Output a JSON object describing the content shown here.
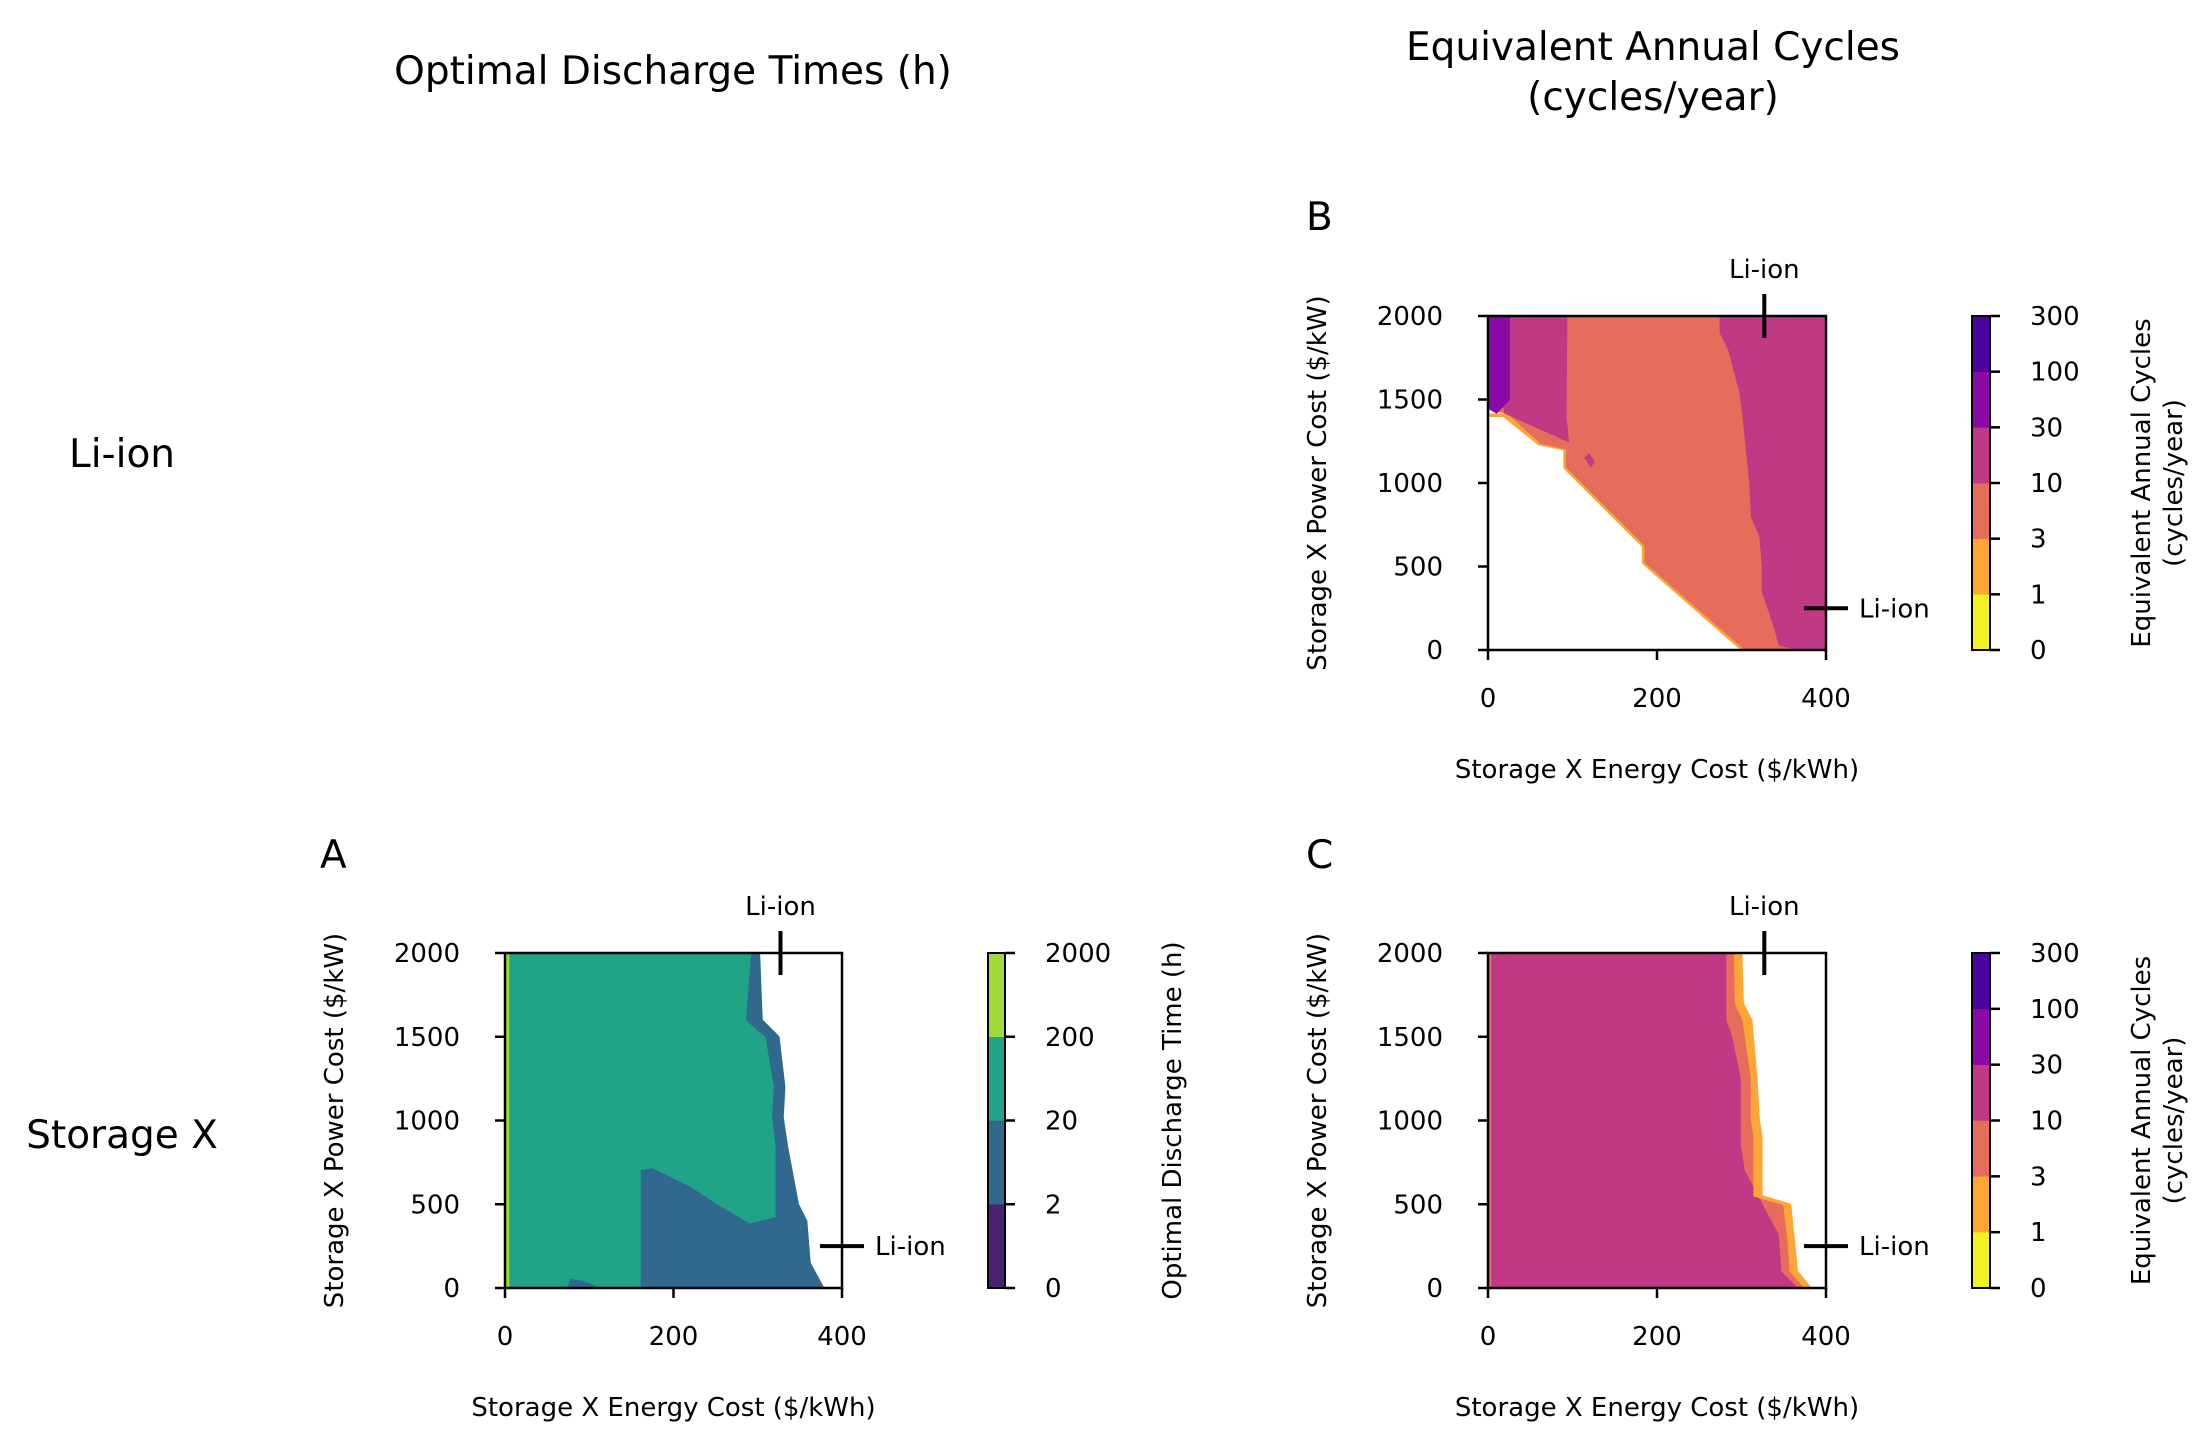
{
  "column_titles": {
    "left": "Optimal Discharge Times (h)",
    "right_line1": "Equivalent Annual Cycles",
    "right_line2": "(cycles/year)"
  },
  "row_titles": {
    "top": "Li-ion",
    "bottom": "Storage X"
  },
  "chart_data": [
    {
      "type": "heatmap",
      "panel": "A",
      "xlabel": "Storage X Energy Cost ($/kWh)",
      "ylabel": "Storage X Power Cost ($/kW)",
      "xlim": [
        0,
        400
      ],
      "ylim": [
        0,
        2000
      ],
      "xticks": [
        "0",
        "200",
        "400"
      ],
      "yticks": [
        "0",
        "500",
        "1000",
        "1500",
        "2000"
      ],
      "reference": {
        "label": "Li-ion",
        "energy_cost": 327,
        "power_cost": 250
      },
      "colorbar": {
        "label": "Optimal Discharge Time (h)",
        "levels": [
          "0",
          "2",
          "20",
          "200",
          "2000"
        ],
        "colors": [
          "#482173",
          "#31688e",
          "#20a386",
          "#a0da39"
        ]
      },
      "regions": [
        {
          "level": "200-2000 h",
          "color": "#a0da39",
          "points": [
            [
              0,
              0
            ],
            [
              6,
              0
            ],
            [
              6,
              2000
            ],
            [
              0,
              2000
            ]
          ]
        },
        {
          "level": "20-200 h",
          "color": "#20a386",
          "points": [
            [
              6,
              0
            ],
            [
              6,
              2000
            ],
            [
              293,
              2000
            ],
            [
              287,
              1600
            ],
            [
              310,
              1500
            ],
            [
              320,
              1200
            ],
            [
              318,
              1020
            ],
            [
              322,
              850
            ],
            [
              322,
              420
            ],
            [
              290,
              380
            ],
            [
              250,
              500
            ],
            [
              220,
              600
            ],
            [
              175,
              710
            ],
            [
              162,
              700
            ],
            [
              162,
              0
            ]
          ]
        },
        {
          "level": "2-20 h",
          "color": "#31688e",
          "points": [
            [
              162,
              0
            ],
            [
              162,
              700
            ],
            [
              175,
              710
            ],
            [
              220,
              600
            ],
            [
              250,
              500
            ],
            [
              290,
              380
            ],
            [
              322,
              420
            ],
            [
              322,
              850
            ],
            [
              318,
              1020
            ],
            [
              320,
              1200
            ],
            [
              310,
              1500
            ],
            [
              287,
              1600
            ],
            [
              293,
              2000
            ],
            [
              302,
              2000
            ],
            [
              305,
              1600
            ],
            [
              325,
              1500
            ],
            [
              332,
              1200
            ],
            [
              330,
              1020
            ],
            [
              335,
              850
            ],
            [
              348,
              500
            ],
            [
              358,
              400
            ],
            [
              362,
              150
            ],
            [
              378,
              0
            ]
          ]
        },
        {
          "level": "2-20 h",
          "color": "#31688e",
          "points": [
            [
              75,
              0
            ],
            [
              78,
              50
            ],
            [
              95,
              35
            ],
            [
              110,
              0
            ]
          ]
        }
      ]
    },
    {
      "type": "heatmap",
      "panel": "B",
      "xlabel": "Storage X Energy Cost ($/kWh)",
      "ylabel": "Storage X Power Cost ($/kW)",
      "xlim": [
        0,
        400
      ],
      "ylim": [
        0,
        2000
      ],
      "xticks": [
        "0",
        "200",
        "400"
      ],
      "yticks": [
        "0",
        "500",
        "1000",
        "1500",
        "2000"
      ],
      "reference": {
        "label": "Li-ion",
        "energy_cost": 327,
        "power_cost": 250
      },
      "colorbar": {
        "label_line1": "Equivalent Annual Cycles",
        "label_line2": "(cycles/year)",
        "levels": [
          "0",
          "1",
          "3",
          "10",
          "30",
          "100",
          "300"
        ],
        "colors": [
          "#f2f122",
          "#fca636",
          "#e66c5c",
          "#bf3984",
          "#8b0aa5",
          "#4c02a1"
        ]
      },
      "regions": [
        {
          "level": "1-3",
          "color": "#fca636",
          "points": [
            [
              0,
              1400
            ],
            [
              18,
              1400
            ],
            [
              60,
              1230
            ],
            [
              90,
              1200
            ],
            [
              90,
              1090
            ],
            [
              183,
              620
            ],
            [
              183,
              520
            ],
            [
              300,
              0
            ],
            [
              305,
              0
            ],
            [
              186,
              520
            ],
            [
              186,
              620
            ],
            [
              93,
              1090
            ],
            [
              93,
              1200
            ],
            [
              63,
              1235
            ],
            [
              22,
              1412
            ],
            [
              0,
              1412
            ]
          ]
        },
        {
          "level": "3-10",
          "color": "#e66c5c",
          "points": [
            [
              10,
              1430
            ],
            [
              23,
              1420
            ],
            [
              63,
              1238
            ],
            [
              93,
              1205
            ],
            [
              93,
              1095
            ],
            [
              186,
              625
            ],
            [
              186,
              525
            ],
            [
              305,
              0
            ],
            [
              375,
              0
            ],
            [
              342,
              250
            ],
            [
              330,
              490
            ],
            [
              330,
              680
            ],
            [
              318,
              890
            ],
            [
              313,
              1050
            ],
            [
              307,
              1400
            ],
            [
              300,
              1620
            ],
            [
              290,
              1840
            ],
            [
              290,
              2000
            ],
            [
              15,
              2000
            ]
          ]
        },
        {
          "level": "10-30",
          "color": "#bf3984",
          "points": [
            [
              5,
              2000
            ],
            [
              93,
              2000
            ],
            [
              93,
              1900
            ],
            [
              92,
              1400
            ],
            [
              95,
              1250
            ],
            [
              20,
              1420
            ]
          ]
        },
        {
          "level": "10-30",
          "color": "#bf3984",
          "points": [
            [
              115,
              1150
            ],
            [
              122,
              1100
            ],
            [
              125,
              1130
            ],
            [
              120,
              1170
            ]
          ]
        },
        {
          "level": "10-30",
          "color": "#bf3984",
          "points": [
            [
              275,
              2000
            ],
            [
              400,
              2000
            ],
            [
              400,
              0
            ],
            [
              370,
              0
            ],
            [
              345,
              30
            ],
            [
              340,
              120
            ],
            [
              325,
              350
            ],
            [
              325,
              500
            ],
            [
              322,
              680
            ],
            [
              312,
              800
            ],
            [
              310,
              1000
            ],
            [
              306,
              1200
            ],
            [
              302,
              1400
            ],
            [
              298,
              1550
            ],
            [
              285,
              1800
            ],
            [
              275,
              1900
            ]
          ]
        },
        {
          "level": "30-100",
          "color": "#8b0aa5",
          "points": [
            [
              0,
              2000
            ],
            [
              25,
              2000
            ],
            [
              25,
              1500
            ],
            [
              10,
              1420
            ],
            [
              0,
              1450
            ]
          ]
        }
      ]
    },
    {
      "type": "heatmap",
      "panel": "C",
      "xlabel": "Storage X Energy Cost ($/kWh)",
      "ylabel": "Storage X Power Cost ($/kW)",
      "xlim": [
        0,
        400
      ],
      "ylim": [
        0,
        2000
      ],
      "xticks": [
        "0",
        "200",
        "400"
      ],
      "yticks": [
        "0",
        "500",
        "1000",
        "1500",
        "2000"
      ],
      "reference": {
        "label": "Li-ion",
        "energy_cost": 327,
        "power_cost": 250
      },
      "colorbar": {
        "label_line1": "Equivalent Annual Cycles",
        "label_line2": "(cycles/year)",
        "levels": [
          "0",
          "1",
          "3",
          "10",
          "30",
          "100",
          "300"
        ],
        "colors": [
          "#f2f122",
          "#fca636",
          "#e66c5c",
          "#bf3984",
          "#8b0aa5",
          "#4c02a1"
        ]
      },
      "regions": [
        {
          "level": "3-10",
          "color": "#e66c5c",
          "points": [
            [
              0,
              0
            ],
            [
              5,
              0
            ],
            [
              5,
              2000
            ],
            [
              0,
              2000
            ]
          ]
        },
        {
          "level": "10-30",
          "color": "#bf3984",
          "points": [
            [
              5,
              0
            ],
            [
              5,
              2000
            ],
            [
              283,
              2000
            ],
            [
              283,
              1600
            ],
            [
              290,
              1500
            ],
            [
              300,
              1250
            ],
            [
              300,
              1000
            ],
            [
              300,
              850
            ],
            [
              305,
              700
            ],
            [
              326,
              500
            ],
            [
              345,
              320
            ],
            [
              348,
              100
            ],
            [
              368,
              0
            ]
          ]
        },
        {
          "level": "3-10",
          "color": "#e66c5c",
          "points": [
            [
              283,
              2000
            ],
            [
              292,
              2000
            ],
            [
              293,
              1700
            ],
            [
              302,
              1600
            ],
            [
              312,
              1250
            ],
            [
              312,
              1000
            ],
            [
              315,
              900
            ],
            [
              315,
              550
            ],
            [
              350,
              500
            ],
            [
              355,
              300
            ],
            [
              358,
              100
            ],
            [
              375,
              0
            ],
            [
              368,
              0
            ],
            [
              348,
              100
            ],
            [
              345,
              320
            ],
            [
              326,
              500
            ],
            [
              305,
              700
            ],
            [
              300,
              850
            ],
            [
              300,
              1250
            ],
            [
              290,
              1500
            ],
            [
              283,
              1600
            ]
          ]
        },
        {
          "level": "1-3",
          "color": "#fca636",
          "points": [
            [
              292,
              2000
            ],
            [
              300,
              2000
            ],
            [
              302,
              1700
            ],
            [
              312,
              1600
            ],
            [
              318,
              1250
            ],
            [
              321,
              1000
            ],
            [
              324,
              900
            ],
            [
              324,
              550
            ],
            [
              358,
              500
            ],
            [
              362,
              300
            ],
            [
              366,
              100
            ],
            [
              382,
              0
            ],
            [
              375,
              0
            ],
            [
              358,
              100
            ],
            [
              355,
              300
            ],
            [
              350,
              500
            ],
            [
              315,
              550
            ],
            [
              315,
              900
            ],
            [
              312,
              1000
            ],
            [
              312,
              1250
            ],
            [
              302,
              1600
            ],
            [
              293,
              1700
            ]
          ]
        }
      ]
    }
  ]
}
